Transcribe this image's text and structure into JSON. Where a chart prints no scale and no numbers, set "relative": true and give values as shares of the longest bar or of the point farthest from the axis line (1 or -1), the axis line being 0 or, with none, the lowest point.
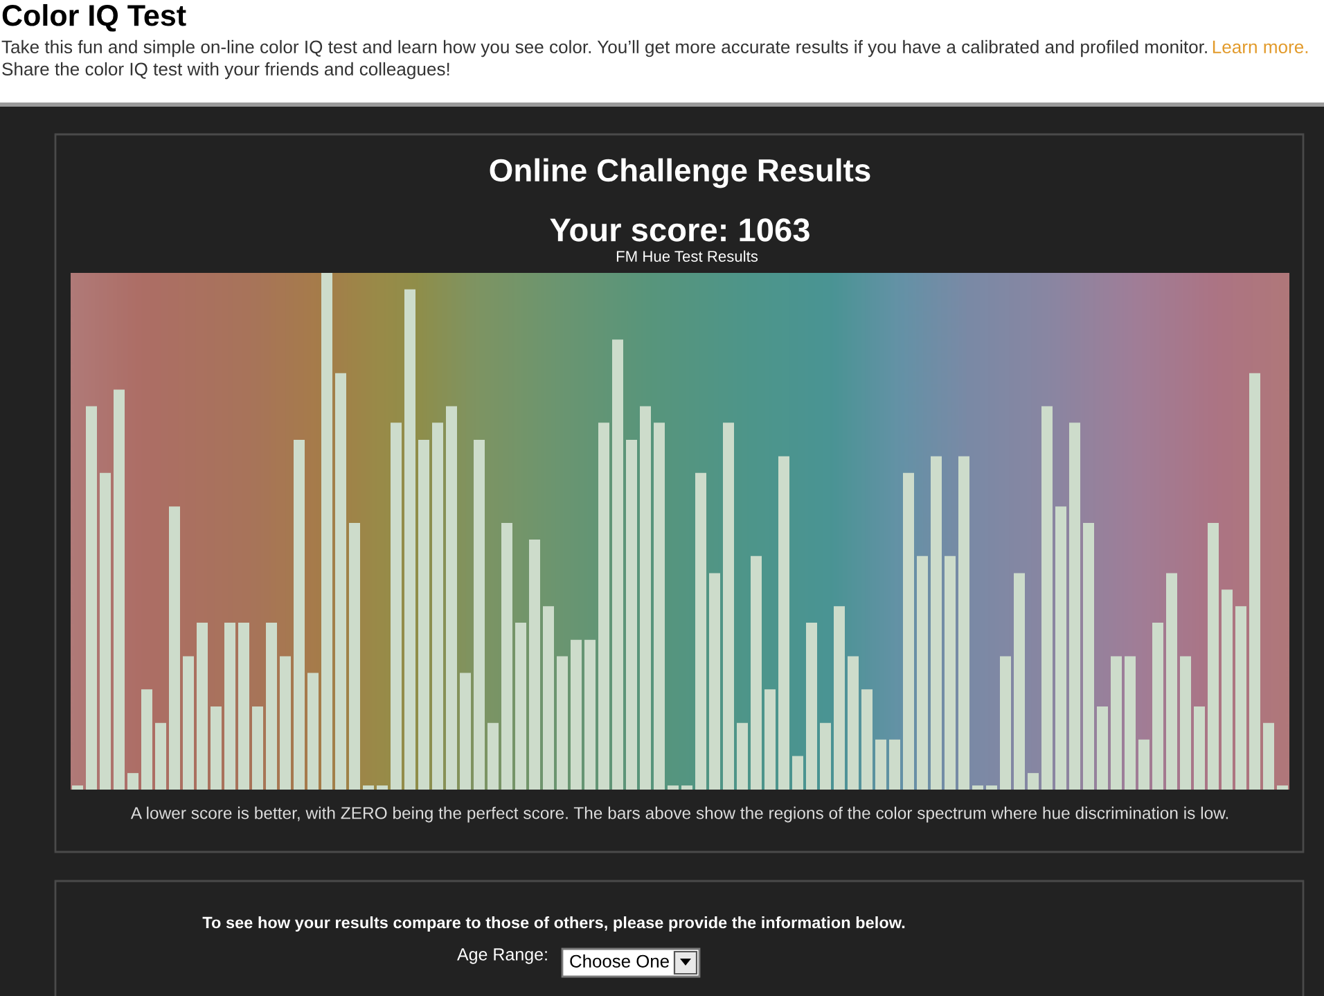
{
  "chart_data": {
    "type": "bar",
    "title": "Online Challenge Results",
    "subtitle": "Your score: 1063",
    "annotations": [
      "Color IQ Test",
      "Take this fun and simple on-line color IQ test and learn how you see color. You’ll get more accurate results if you have a calibrated and profiled monitor.",
      "Learn more.",
      "Share the color IQ test with your friends and colleagues!",
      "FM Hue Test Results",
      "A lower score is better, with ZERO being the perfect score. The bars above show the regions of the color spectrum where hue discrimination is low.",
      "To see how your results compare to those of others, please provide the information below.",
      "Age Range:",
      "Choose One"
    ],
    "categories": [
      null,
      null,
      null,
      null,
      null,
      null,
      null,
      null,
      null,
      null,
      null,
      null,
      null,
      null,
      null,
      null,
      null,
      null,
      null,
      null,
      null,
      null,
      null,
      null,
      null,
      null,
      null,
      null,
      null,
      null,
      null,
      null,
      null,
      null,
      null,
      null,
      null,
      null,
      null,
      null,
      null,
      null,
      null,
      null,
      null,
      null,
      null,
      null,
      null,
      null,
      null,
      null,
      null,
      null,
      null,
      null,
      null,
      null,
      null,
      null,
      null,
      null,
      null,
      null,
      null,
      null,
      null,
      null,
      null,
      null,
      null,
      null,
      null,
      null,
      null,
      null,
      null,
      null,
      null,
      null,
      null,
      null,
      null,
      null,
      null,
      null,
      null,
      null
    ],
    "values": [
      0.008,
      0.742,
      0.613,
      0.774,
      0.032,
      0.194,
      0.129,
      0.548,
      0.258,
      0.323,
      0.161,
      0.323,
      0.323,
      0.161,
      0.323,
      0.258,
      0.677,
      0.226,
      1,
      0.806,
      0.516,
      0.008,
      0.008,
      0.71,
      0.968,
      0.677,
      0.71,
      0.742,
      0.226,
      0.677,
      0.129,
      0.516,
      0.323,
      0.484,
      0.355,
      0.258,
      0.29,
      0.29,
      0.71,
      0.871,
      0.677,
      0.742,
      0.71,
      0.008,
      0.008,
      0.613,
      0.419,
      0.71,
      0.129,
      0.452,
      0.194,
      0.645,
      0.065,
      0.323,
      0.129,
      0.355,
      0.258,
      0.194,
      0.097,
      0.097,
      0.613,
      0.452,
      0.645,
      0.452,
      0.645,
      0.008,
      0.008,
      0.258,
      0.419,
      0.032,
      0.742,
      0.548,
      0.71,
      0.516,
      0.161,
      0.258,
      0.258,
      0.097,
      0.323,
      0.419,
      0.258,
      0.161,
      0.516,
      0.387,
      0.355,
      0.806,
      0.129,
      0.008
    ],
    "color": "#cddccb",
    "relative": true
  }
}
